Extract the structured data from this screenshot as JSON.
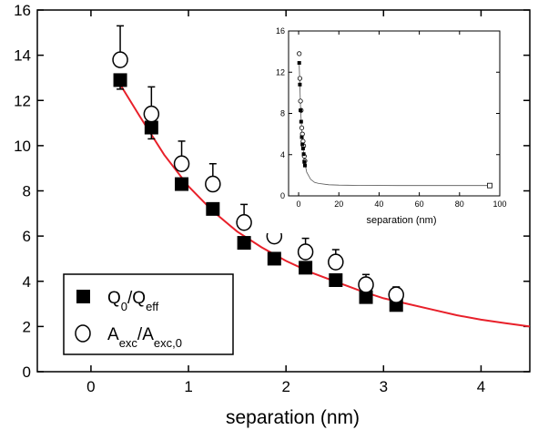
{
  "chart_data": [
    {
      "type": "scatter",
      "xlabel": "separation (nm)",
      "ylabel": "",
      "xlim": [
        -0.55,
        4.5
      ],
      "ylim": [
        0,
        16
      ],
      "xticks": [
        0,
        1,
        2,
        3,
        4
      ],
      "yticks": [
        0,
        2,
        4,
        6,
        8,
        10,
        12,
        14,
        16
      ],
      "grid": false,
      "legend_position": "bottom-left",
      "series": [
        {
          "name": "Q_0/Q_eff",
          "legend_main": "Q",
          "legend_sub1": "0",
          "legend_mid": "/Q",
          "legend_sub2": "eff",
          "marker": "filled-square",
          "x": [
            0.3,
            0.62,
            0.93,
            1.25,
            1.57,
            1.88,
            2.2,
            2.51,
            2.82,
            3.13
          ],
          "y": [
            12.9,
            10.8,
            8.3,
            7.2,
            5.7,
            5.0,
            4.6,
            4.05,
            3.3,
            2.95
          ],
          "err_low": [
            0.4,
            0.5,
            0.0,
            0.0,
            0.0,
            0.0,
            0.0,
            0.0,
            0.0,
            0.0
          ]
        },
        {
          "name": "A_exc/A_exc,0",
          "legend_main": "A",
          "legend_sub1": "exc",
          "legend_mid": "/A",
          "legend_sub2": "exc,0",
          "marker": "open-circle",
          "x": [
            0.3,
            0.62,
            0.93,
            1.25,
            1.57,
            1.88,
            2.2,
            2.51,
            2.82,
            3.13
          ],
          "y": [
            13.8,
            11.4,
            9.2,
            8.3,
            6.6,
            6.0,
            5.3,
            4.85,
            3.85,
            3.4
          ],
          "err_high": [
            1.5,
            1.2,
            1.0,
            0.9,
            0.8,
            0.7,
            0.6,
            0.55,
            0.45,
            0.35
          ]
        },
        {
          "name": "fit",
          "type": "line",
          "color": "#e8202a",
          "x": [
            0.3,
            0.5,
            0.75,
            1.0,
            1.25,
            1.5,
            1.75,
            2.0,
            2.25,
            2.5,
            2.75,
            3.0,
            3.25,
            3.5,
            3.75,
            4.0,
            4.25,
            4.5
          ],
          "y": [
            12.7,
            11.3,
            9.6,
            8.2,
            7.1,
            6.2,
            5.5,
            4.9,
            4.4,
            4.0,
            3.6,
            3.25,
            3.0,
            2.75,
            2.5,
            2.3,
            2.15,
            2.0
          ]
        }
      ]
    },
    {
      "type": "scatter",
      "xlabel": "separation (nm)",
      "ylabel": "",
      "xlim": [
        -5,
        100
      ],
      "ylim": [
        0,
        16
      ],
      "xticks": [
        0,
        20,
        40,
        60,
        80,
        100
      ],
      "yticks": [
        0,
        4,
        8,
        12,
        16
      ],
      "series": [
        {
          "marker": "open-circle",
          "x": [
            0.3,
            0.62,
            0.93,
            1.25,
            1.57,
            1.88,
            2.2,
            2.51,
            2.82,
            3.13
          ],
          "y": [
            13.8,
            11.4,
            9.2,
            8.3,
            6.6,
            6.0,
            5.3,
            4.85,
            3.85,
            3.4
          ]
        },
        {
          "marker": "filled-square",
          "x": [
            0.3,
            0.62,
            0.93,
            1.25,
            1.57,
            1.88,
            2.2,
            2.51,
            2.82,
            3.13
          ],
          "y": [
            12.9,
            10.8,
            8.3,
            7.2,
            5.7,
            5.0,
            4.6,
            4.05,
            3.3,
            2.95
          ]
        },
        {
          "marker": "open-square",
          "x": [
            95
          ],
          "y": [
            1.0
          ]
        },
        {
          "type": "line",
          "color": "#555555",
          "x": [
            0.3,
            1,
            2,
            3,
            4,
            6,
            8,
            10,
            15,
            20,
            30,
            50,
            95
          ],
          "y": [
            12.7,
            8.2,
            4.9,
            3.25,
            2.3,
            1.6,
            1.3,
            1.2,
            1.08,
            1.04,
            1.02,
            1.0,
            1.0
          ]
        }
      ]
    }
  ]
}
